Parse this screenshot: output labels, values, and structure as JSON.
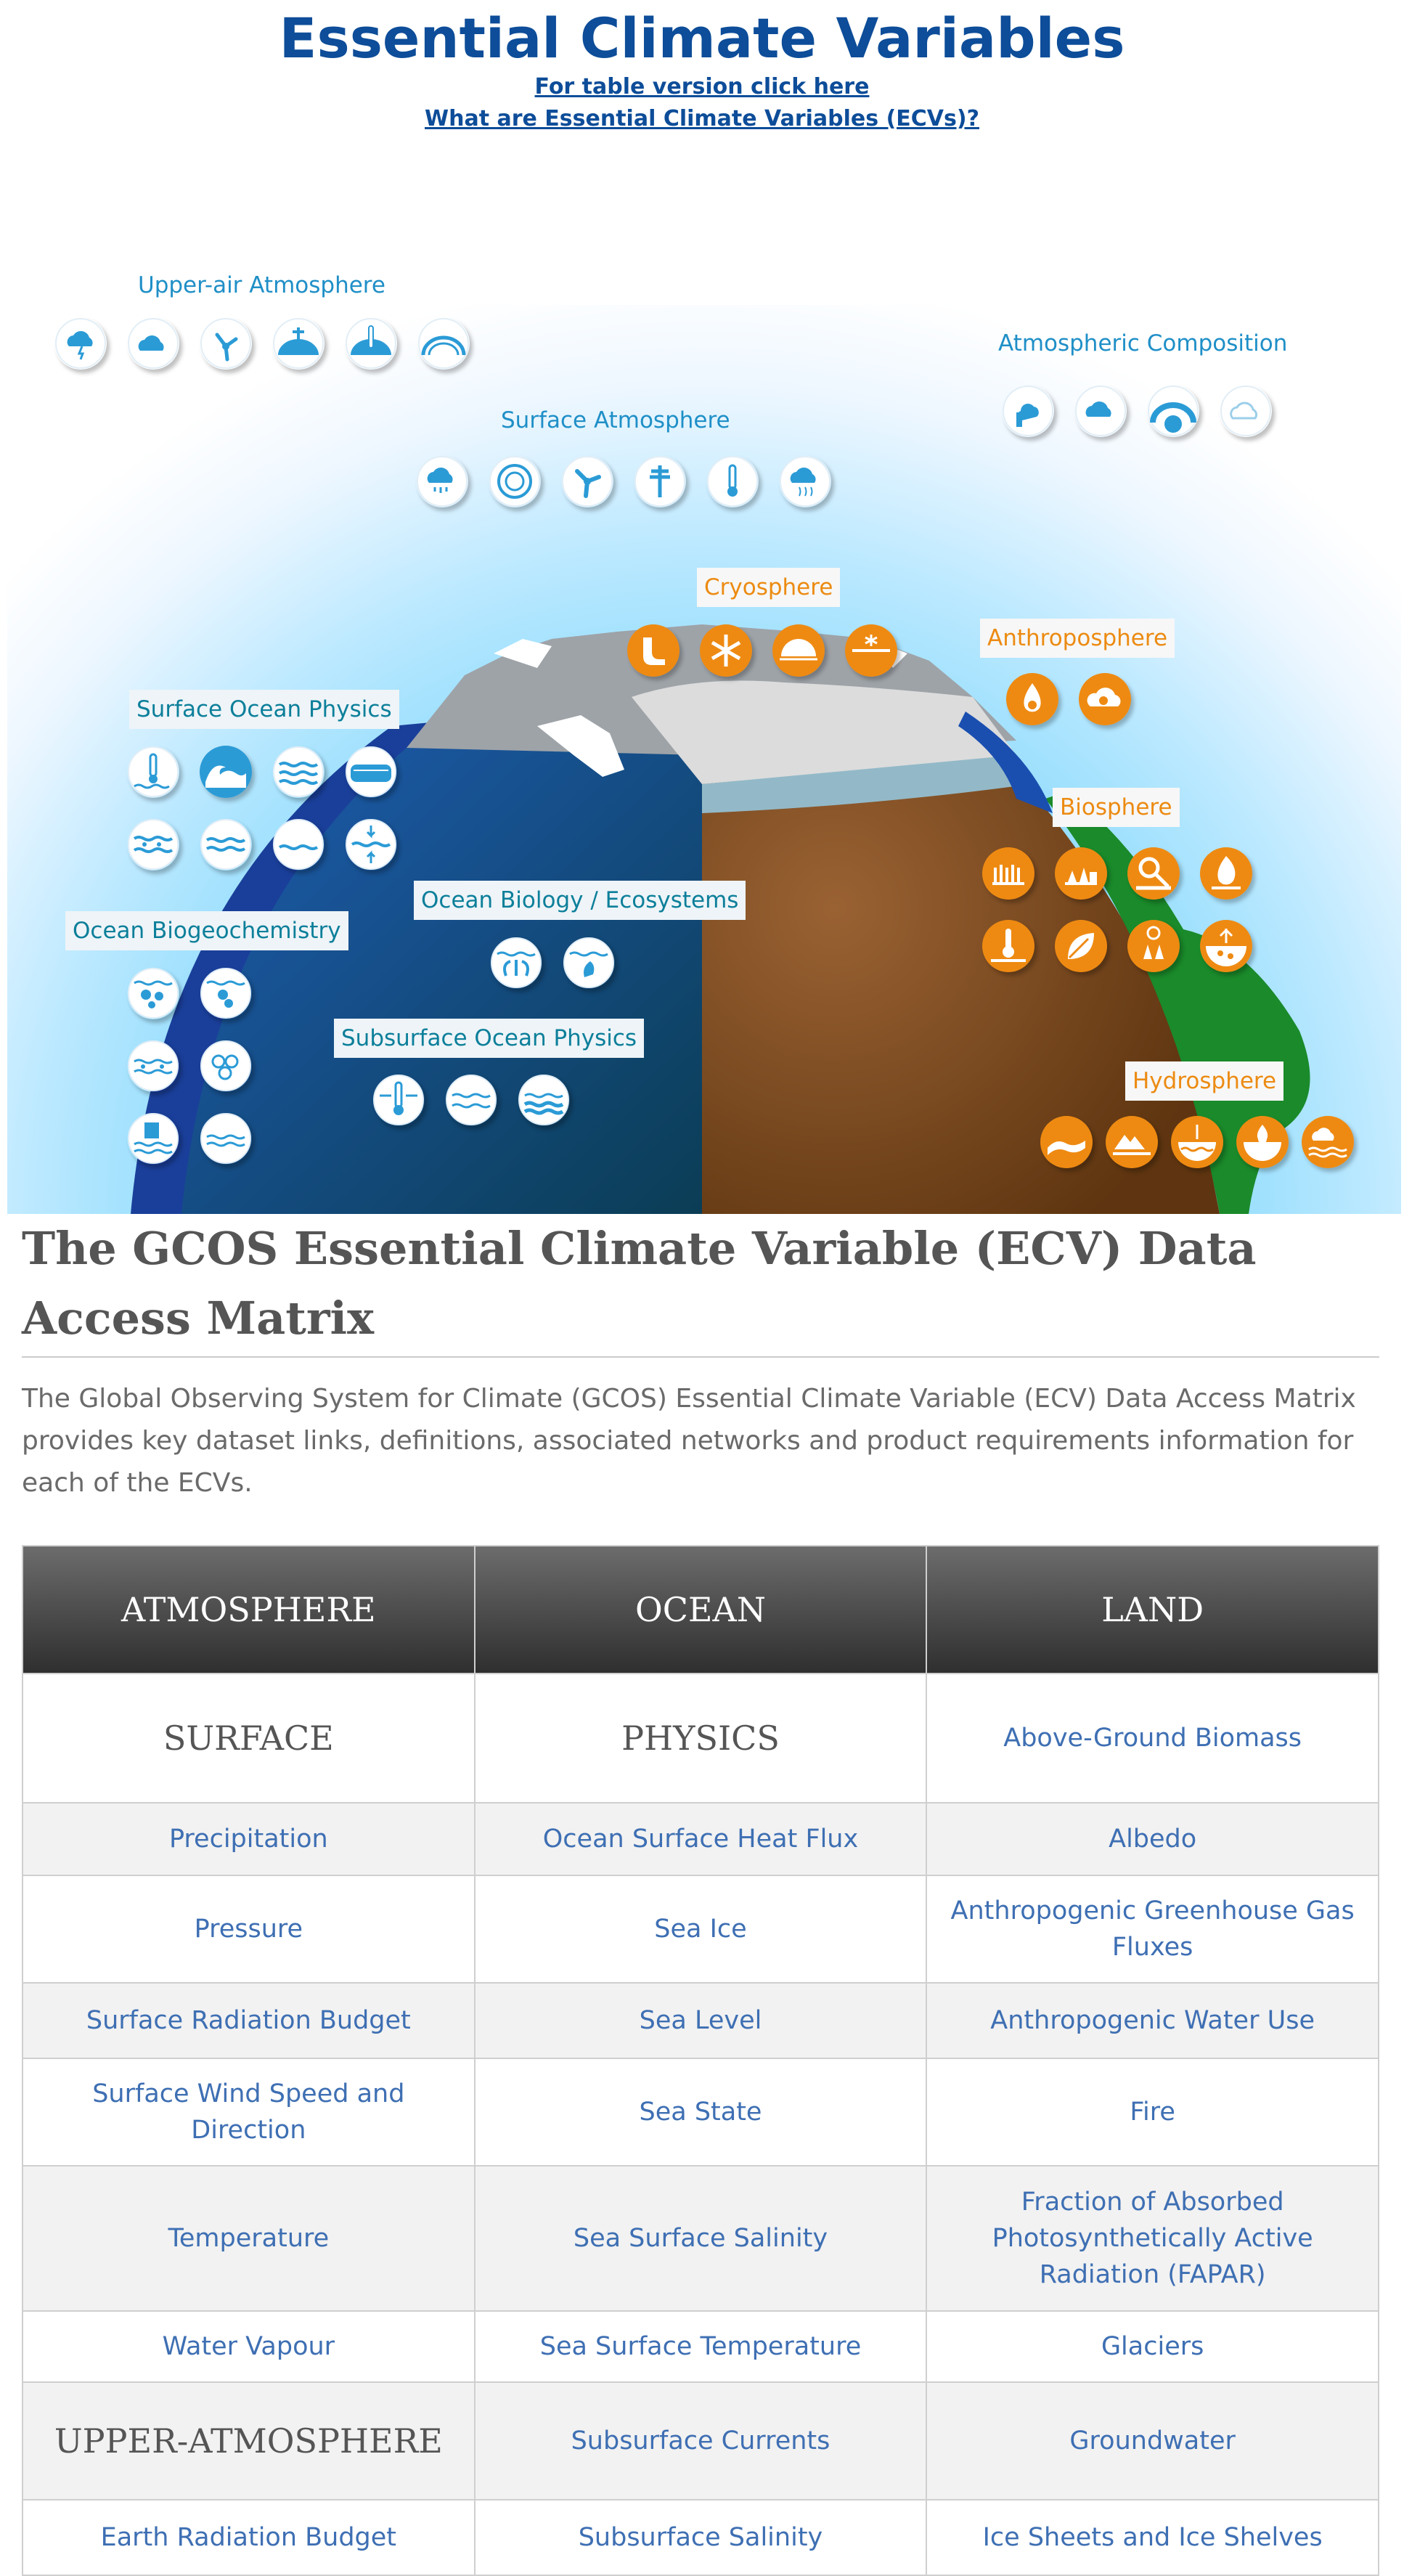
{
  "header": {
    "title": "Essential Climate Variables",
    "table_link": "For table version click here",
    "ecv_link": "What are Essential Climate Variables (ECVs)?"
  },
  "scene": {
    "labels": {
      "upper_air": "Upper-air Atmosphere",
      "atmos_comp": "Atmospheric Composition",
      "surface_atmos": "Surface Atmosphere",
      "cryosphere": "Cryosphere",
      "anthroposphere": "Anthroposphere",
      "surface_ocean": "Surface Ocean Physics",
      "biosphere": "Biosphere",
      "ocean_biogeo": "Ocean Biogeochemistry",
      "ocean_bio": "Ocean Biology / Ecosystems",
      "subsurface": "Subsurface Ocean Physics",
      "hydrosphere": "Hydrosphere"
    },
    "colors": {
      "blue_icons": "#2b9bd6",
      "orange_icons": "#ee8a12",
      "ocean": "#1c4fa0",
      "land": "#6b3c12",
      "vegetation": "#1a8a2a"
    }
  },
  "matrix": {
    "title": "The GCOS Essential Climate Variable (ECV) Data Access Matrix",
    "description": "The Global Observing System for Climate (GCOS) Essential Climate  Variable (ECV) Data Access Matrix provides key dataset links, definitions, associated networks and product requirements information for each of the ECVs.",
    "headers": [
      "ATMOSPHERE",
      "OCEAN",
      "LAND"
    ],
    "rows": [
      [
        "SURFACE",
        "PHYSICS",
        "Above-Ground Biomass"
      ],
      [
        "Precipitation",
        "Ocean Surface Heat Flux",
        "Albedo"
      ],
      [
        "Pressure",
        "Sea Ice",
        "Anthropogenic Greenhouse Gas Fluxes"
      ],
      [
        "Surface Radiation Budget",
        "Sea Level",
        "Anthropogenic Water Use"
      ],
      [
        "Surface Wind Speed and Direction",
        "Sea State",
        "Fire"
      ],
      [
        "Temperature",
        "Sea Surface Salinity",
        "Fraction of Absorbed Photosynthetically Active Radiation (FAPAR)"
      ],
      [
        "Water Vapour",
        "Sea Surface Temperature",
        "Glaciers"
      ],
      [
        "UPPER-ATMOSPHERE",
        "Subsurface Currents",
        "Groundwater"
      ],
      [
        "Earth Radiation Budget",
        "Subsurface Salinity",
        "Ice Sheets and Ice Shelves"
      ]
    ]
  }
}
